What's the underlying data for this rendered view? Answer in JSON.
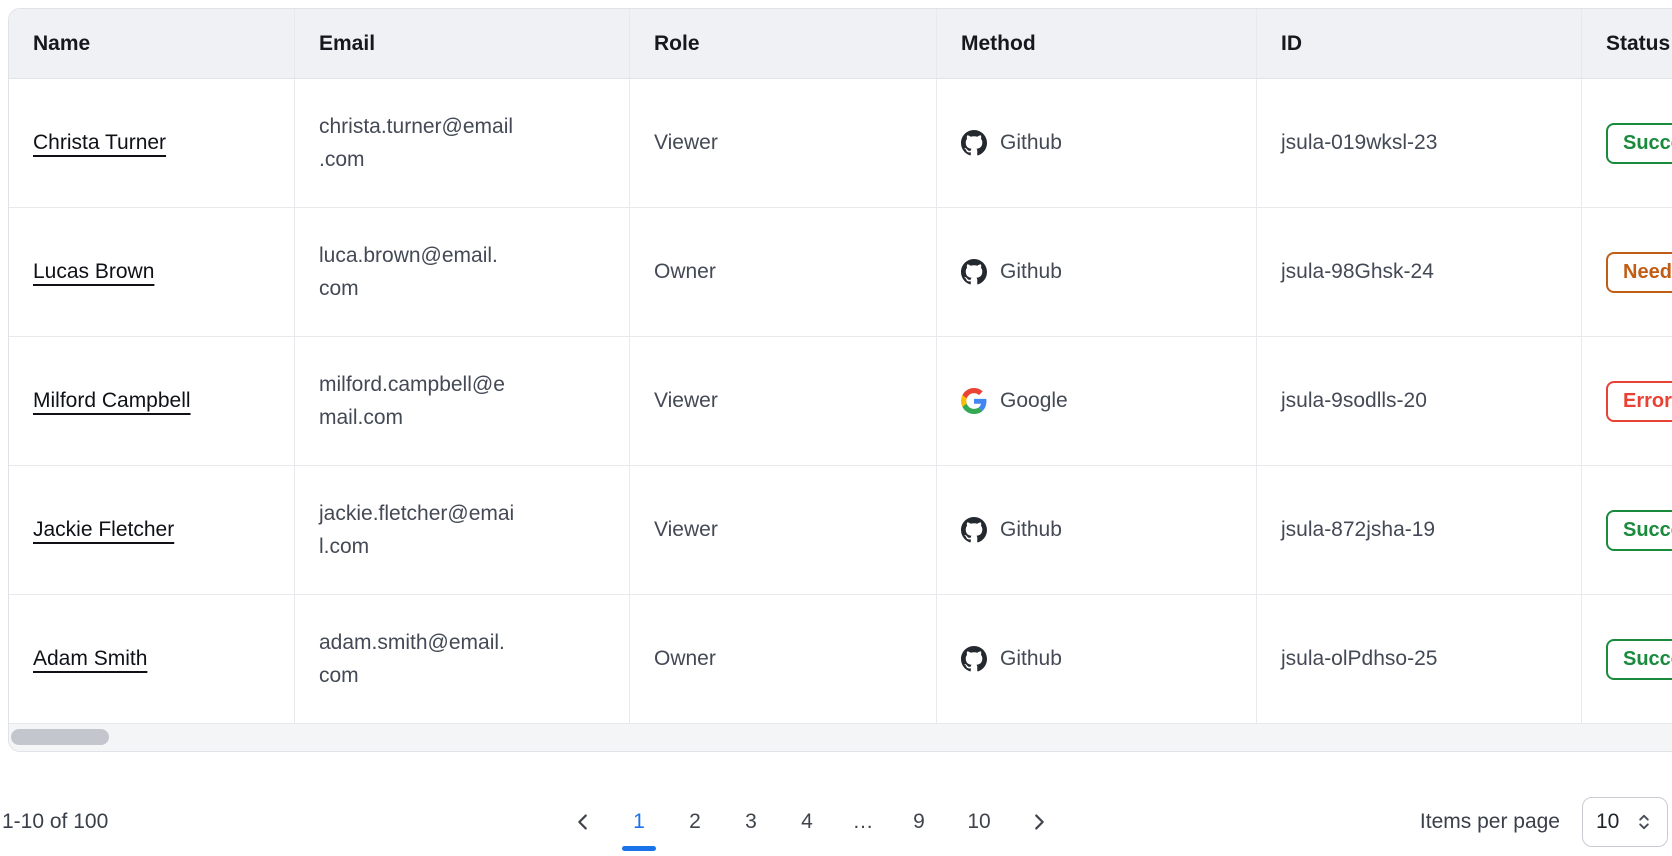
{
  "table": {
    "columns": [
      "Name",
      "Email",
      "Role",
      "Method",
      "ID",
      "Status"
    ],
    "rows": [
      {
        "name": "Christa Turner",
        "email": "christa.turner@email.com",
        "email_lines": [
          "christa.turner@email",
          ".com"
        ],
        "role": "Viewer",
        "method": "Github",
        "method_icon": "github-icon",
        "id": "jsula-019wksl-23",
        "status": "Success",
        "status_color": "green"
      },
      {
        "name": "Lucas Brown",
        "email": "luca.brown@email.com",
        "email_lines": [
          "luca.brown@email.",
          "com"
        ],
        "role": "Owner",
        "method": "Github",
        "method_icon": "github-icon",
        "id": "jsula-98Ghsk-24",
        "status": "Needs action",
        "status_color": "orange"
      },
      {
        "name": "Milford Campbell",
        "email": "milford.campbell@email.com",
        "email_lines": [
          "milford.campbell@e",
          "mail.com"
        ],
        "role": "Viewer",
        "method": "Google",
        "method_icon": "google-icon",
        "id": "jsula-9sodlls-20",
        "status": "Error",
        "status_color": "red"
      },
      {
        "name": "Jackie Fletcher",
        "email": "jackie.fletcher@email.com",
        "email_lines": [
          "jackie.fletcher@emai",
          "l.com"
        ],
        "role": "Viewer",
        "method": "Github",
        "method_icon": "github-icon",
        "id": "jsula-872jsha-19",
        "status": "Success",
        "status_color": "green"
      },
      {
        "name": "Adam Smith",
        "email": "adam.smith@email.com",
        "email_lines": [
          "adam.smith@email.",
          "com"
        ],
        "role": "Owner",
        "method": "Github",
        "method_icon": "github-icon",
        "id": "jsula-olPdhso-25",
        "status": "Success",
        "status_color": "green"
      }
    ]
  },
  "pagination": {
    "range_label": "1-10 of 100",
    "pages": [
      "1",
      "2",
      "3",
      "4",
      "…",
      "9",
      "10"
    ],
    "active_page": "1",
    "items_per_page_label": "Items per page",
    "items_per_page_value": "10"
  },
  "icons": {
    "github": "github-icon",
    "google": "google-icon",
    "previous": "chevron-left-icon",
    "next": "chevron-right-icon",
    "per_page_stepper": "unfold-more-icon"
  },
  "colors": {
    "accent_blue": "#1a73e8",
    "success_green": "#1a8a3d",
    "warning_orange": "#c05e16",
    "error_red": "#e94235",
    "header_bg": "#f0f1f4",
    "border": "#e7e9ec",
    "github_icon": "#24292f"
  }
}
